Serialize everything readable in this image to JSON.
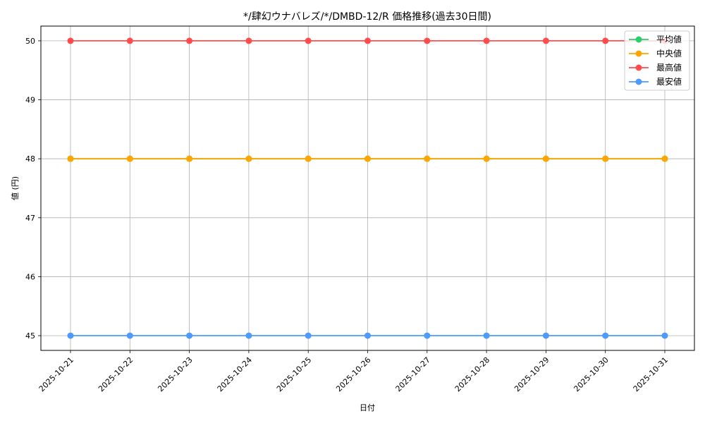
{
  "chart_data": {
    "type": "line",
    "title": "*/肆幻ウナバレズ/*/DMBD-12/R 価格推移(過去30日間)",
    "xlabel": "日付",
    "ylabel": "値 (円)",
    "categories": [
      "2025-10-21",
      "2025-10-22",
      "2025-10-23",
      "2025-10-24",
      "2025-10-25",
      "2025-10-26",
      "2025-10-27",
      "2025-10-28",
      "2025-10-29",
      "2025-10-30",
      "2025-10-31"
    ],
    "ylim": [
      44.75,
      50.25
    ],
    "yticks": [
      45,
      46,
      47,
      48,
      49,
      50
    ],
    "grid": true,
    "legend_position": "upper right",
    "series": [
      {
        "name": "平均値",
        "color": "#2ecc71",
        "values": [
          48,
          48,
          48,
          48,
          48,
          48,
          48,
          48,
          48,
          48,
          48
        ]
      },
      {
        "name": "中央値",
        "color": "#ffa500",
        "values": [
          48,
          48,
          48,
          48,
          48,
          48,
          48,
          48,
          48,
          48,
          48
        ]
      },
      {
        "name": "最高値",
        "color": "#ff4d4d",
        "values": [
          50,
          50,
          50,
          50,
          50,
          50,
          50,
          50,
          50,
          50,
          50
        ]
      },
      {
        "name": "最安値",
        "color": "#4d9bff",
        "values": [
          45,
          45,
          45,
          45,
          45,
          45,
          45,
          45,
          45,
          45,
          45
        ]
      }
    ]
  }
}
